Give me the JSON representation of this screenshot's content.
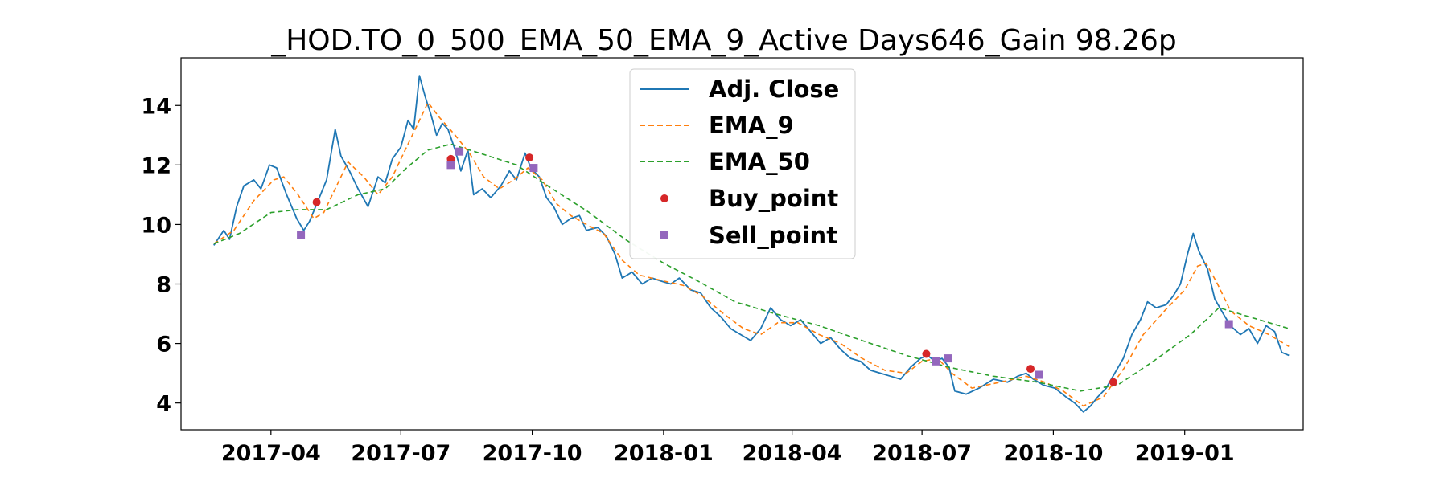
{
  "chart_data": {
    "type": "line",
    "title": "_HOD.TO_0_500_EMA_50_EMA_9_Active Days646_Gain  98.26p",
    "xlabel": "",
    "ylabel": "",
    "xlim": [
      "2017-01-28",
      "2019-03-25"
    ],
    "ylim": [
      3.1,
      15.6
    ],
    "grid": false,
    "legend_position": "top-center",
    "x_tick_labels": [
      "2017-04",
      "2017-07",
      "2017-10",
      "2018-01",
      "2018-04",
      "2018-07",
      "2018-10",
      "2019-01"
    ],
    "y_tick_labels": [
      "4",
      "6",
      "8",
      "10",
      "12",
      "14"
    ],
    "series": [
      {
        "name": "Adj. Close",
        "color": "#1f77b4",
        "style": "solid",
        "points": [
          [
            "2017-02-20",
            9.3
          ],
          [
            "2017-02-27",
            9.8
          ],
          [
            "2017-03-03",
            9.5
          ],
          [
            "2017-03-08",
            10.6
          ],
          [
            "2017-03-13",
            11.3
          ],
          [
            "2017-03-20",
            11.5
          ],
          [
            "2017-03-25",
            11.2
          ],
          [
            "2017-03-31",
            12.0
          ],
          [
            "2017-04-05",
            11.9
          ],
          [
            "2017-04-12",
            11.0
          ],
          [
            "2017-04-19",
            10.2
          ],
          [
            "2017-04-24",
            9.8
          ],
          [
            "2017-04-28",
            10.1
          ],
          [
            "2017-05-04",
            10.8
          ],
          [
            "2017-05-10",
            11.5
          ],
          [
            "2017-05-16",
            13.2
          ],
          [
            "2017-05-20",
            12.3
          ],
          [
            "2017-05-26",
            11.8
          ],
          [
            "2017-06-01",
            11.2
          ],
          [
            "2017-06-08",
            10.6
          ],
          [
            "2017-06-15",
            11.6
          ],
          [
            "2017-06-20",
            11.4
          ],
          [
            "2017-06-25",
            12.2
          ],
          [
            "2017-07-01",
            12.6
          ],
          [
            "2017-07-06",
            13.5
          ],
          [
            "2017-07-10",
            13.2
          ],
          [
            "2017-07-14",
            15.0
          ],
          [
            "2017-07-18",
            14.3
          ],
          [
            "2017-07-22",
            13.7
          ],
          [
            "2017-07-26",
            13.0
          ],
          [
            "2017-07-30",
            13.4
          ],
          [
            "2017-08-03",
            13.2
          ],
          [
            "2017-08-08",
            12.5
          ],
          [
            "2017-08-12",
            11.8
          ],
          [
            "2017-08-17",
            12.5
          ],
          [
            "2017-08-21",
            11.0
          ],
          [
            "2017-08-27",
            11.2
          ],
          [
            "2017-09-02",
            10.9
          ],
          [
            "2017-09-09",
            11.3
          ],
          [
            "2017-09-15",
            11.8
          ],
          [
            "2017-09-20",
            11.5
          ],
          [
            "2017-09-26",
            12.4
          ],
          [
            "2017-09-30",
            11.9
          ],
          [
            "2017-10-06",
            11.6
          ],
          [
            "2017-10-11",
            10.9
          ],
          [
            "2017-10-16",
            10.6
          ],
          [
            "2017-10-22",
            10.0
          ],
          [
            "2017-10-28",
            10.2
          ],
          [
            "2017-11-03",
            10.3
          ],
          [
            "2017-11-08",
            9.8
          ],
          [
            "2017-11-16",
            9.9
          ],
          [
            "2017-11-22",
            9.6
          ],
          [
            "2017-11-28",
            9.0
          ],
          [
            "2017-12-03",
            8.2
          ],
          [
            "2017-12-10",
            8.4
          ],
          [
            "2017-12-17",
            8.0
          ],
          [
            "2017-12-24",
            8.2
          ],
          [
            "2017-12-30",
            8.1
          ],
          [
            "2018-01-06",
            8.0
          ],
          [
            "2018-01-12",
            8.2
          ],
          [
            "2018-01-20",
            7.8
          ],
          [
            "2018-01-27",
            7.7
          ],
          [
            "2018-02-03",
            7.2
          ],
          [
            "2018-02-10",
            6.9
          ],
          [
            "2018-02-17",
            6.5
          ],
          [
            "2018-02-24",
            6.3
          ],
          [
            "2018-03-03",
            6.1
          ],
          [
            "2018-03-10",
            6.5
          ],
          [
            "2018-03-17",
            7.2
          ],
          [
            "2018-03-24",
            6.8
          ],
          [
            "2018-03-31",
            6.6
          ],
          [
            "2018-04-07",
            6.8
          ],
          [
            "2018-04-14",
            6.4
          ],
          [
            "2018-04-21",
            6.0
          ],
          [
            "2018-04-28",
            6.2
          ],
          [
            "2018-05-05",
            5.8
          ],
          [
            "2018-05-12",
            5.5
          ],
          [
            "2018-05-19",
            5.4
          ],
          [
            "2018-05-26",
            5.1
          ],
          [
            "2018-06-02",
            5.0
          ],
          [
            "2018-06-09",
            4.9
          ],
          [
            "2018-06-16",
            4.8
          ],
          [
            "2018-06-23",
            5.2
          ],
          [
            "2018-06-30",
            5.5
          ],
          [
            "2018-07-05",
            5.6
          ],
          [
            "2018-07-10",
            5.4
          ],
          [
            "2018-07-15",
            5.5
          ],
          [
            "2018-07-20",
            5.2
          ],
          [
            "2018-07-24",
            4.4
          ],
          [
            "2018-08-01",
            4.3
          ],
          [
            "2018-08-10",
            4.5
          ],
          [
            "2018-08-20",
            4.8
          ],
          [
            "2018-08-30",
            4.7
          ],
          [
            "2018-09-06",
            4.9
          ],
          [
            "2018-09-12",
            5.0
          ],
          [
            "2018-09-17",
            4.8
          ],
          [
            "2018-09-24",
            4.6
          ],
          [
            "2018-10-02",
            4.5
          ],
          [
            "2018-10-10",
            4.2
          ],
          [
            "2018-10-16",
            4.0
          ],
          [
            "2018-10-22",
            3.7
          ],
          [
            "2018-10-27",
            3.9
          ],
          [
            "2018-11-01",
            4.2
          ],
          [
            "2018-11-07",
            4.5
          ],
          [
            "2018-11-13",
            5.0
          ],
          [
            "2018-11-19",
            5.5
          ],
          [
            "2018-11-25",
            6.3
          ],
          [
            "2018-12-01",
            6.8
          ],
          [
            "2018-12-06",
            7.4
          ],
          [
            "2018-12-12",
            7.2
          ],
          [
            "2018-12-19",
            7.3
          ],
          [
            "2018-12-24",
            7.6
          ],
          [
            "2018-12-29",
            8.0
          ],
          [
            "2019-01-03",
            9.0
          ],
          [
            "2019-01-07",
            9.7
          ],
          [
            "2019-01-11",
            9.1
          ],
          [
            "2019-01-17",
            8.5
          ],
          [
            "2019-01-22",
            7.5
          ],
          [
            "2019-01-28",
            7.0
          ],
          [
            "2019-02-02",
            6.6
          ],
          [
            "2019-02-09",
            6.3
          ],
          [
            "2019-02-15",
            6.5
          ],
          [
            "2019-02-21",
            6.0
          ],
          [
            "2019-02-27",
            6.6
          ],
          [
            "2019-03-05",
            6.4
          ],
          [
            "2019-03-10",
            5.7
          ],
          [
            "2019-03-15",
            5.6
          ]
        ]
      },
      {
        "name": "EMA_9",
        "color": "#ff7f0e",
        "style": "dashed",
        "points": [
          [
            "2017-02-20",
            9.35
          ],
          [
            "2017-03-06",
            9.8
          ],
          [
            "2017-03-20",
            10.8
          ],
          [
            "2017-04-03",
            11.5
          ],
          [
            "2017-04-10",
            11.6
          ],
          [
            "2017-04-20",
            11.0
          ],
          [
            "2017-05-01",
            10.2
          ],
          [
            "2017-05-08",
            10.4
          ],
          [
            "2017-05-16",
            11.2
          ],
          [
            "2017-05-25",
            12.1
          ],
          [
            "2017-06-05",
            11.6
          ],
          [
            "2017-06-15",
            11.0
          ],
          [
            "2017-06-25",
            11.6
          ],
          [
            "2017-07-05",
            12.6
          ],
          [
            "2017-07-15",
            13.6
          ],
          [
            "2017-07-20",
            14.1
          ],
          [
            "2017-07-28",
            13.6
          ],
          [
            "2017-08-08",
            13.0
          ],
          [
            "2017-08-18",
            12.4
          ],
          [
            "2017-08-28",
            11.6
          ],
          [
            "2017-09-08",
            11.2
          ],
          [
            "2017-09-18",
            11.5
          ],
          [
            "2017-09-28",
            11.9
          ],
          [
            "2017-10-08",
            11.5
          ],
          [
            "2017-10-18",
            10.7
          ],
          [
            "2017-10-28",
            10.3
          ],
          [
            "2017-11-08",
            10.0
          ],
          [
            "2017-11-20",
            9.7
          ],
          [
            "2017-12-03",
            8.8
          ],
          [
            "2017-12-15",
            8.3
          ],
          [
            "2018-01-01",
            8.1
          ],
          [
            "2018-01-15",
            7.95
          ],
          [
            "2018-01-28",
            7.6
          ],
          [
            "2018-02-12",
            7.0
          ],
          [
            "2018-02-26",
            6.5
          ],
          [
            "2018-03-10",
            6.3
          ],
          [
            "2018-03-22",
            6.7
          ],
          [
            "2018-04-05",
            6.7
          ],
          [
            "2018-04-20",
            6.3
          ],
          [
            "2018-05-05",
            6.0
          ],
          [
            "2018-05-20",
            5.5
          ],
          [
            "2018-06-05",
            5.1
          ],
          [
            "2018-06-20",
            5.0
          ],
          [
            "2018-07-01",
            5.4
          ],
          [
            "2018-07-12",
            5.5
          ],
          [
            "2018-07-22",
            5.0
          ],
          [
            "2018-08-05",
            4.5
          ],
          [
            "2018-08-25",
            4.7
          ],
          [
            "2018-09-12",
            4.9
          ],
          [
            "2018-09-25",
            4.7
          ],
          [
            "2018-10-08",
            4.4
          ],
          [
            "2018-10-22",
            3.9
          ],
          [
            "2018-11-05",
            4.2
          ],
          [
            "2018-11-20",
            5.2
          ],
          [
            "2018-12-03",
            6.3
          ],
          [
            "2018-12-18",
            7.1
          ],
          [
            "2019-01-01",
            7.8
          ],
          [
            "2019-01-10",
            8.6
          ],
          [
            "2019-01-16",
            8.7
          ],
          [
            "2019-01-24",
            8.0
          ],
          [
            "2019-02-02",
            7.1
          ],
          [
            "2019-02-15",
            6.6
          ],
          [
            "2019-03-01",
            6.3
          ],
          [
            "2019-03-15",
            5.9
          ]
        ]
      },
      {
        "name": "EMA_50",
        "color": "#2ca02c",
        "style": "dashed",
        "points": [
          [
            "2017-02-20",
            9.35
          ],
          [
            "2017-03-10",
            9.7
          ],
          [
            "2017-04-01",
            10.4
          ],
          [
            "2017-04-20",
            10.5
          ],
          [
            "2017-05-10",
            10.5
          ],
          [
            "2017-06-01",
            11.0
          ],
          [
            "2017-06-20",
            11.2
          ],
          [
            "2017-07-05",
            11.9
          ],
          [
            "2017-07-20",
            12.5
          ],
          [
            "2017-08-05",
            12.7
          ],
          [
            "2017-08-25",
            12.4
          ],
          [
            "2017-09-20",
            12.0
          ],
          [
            "2017-10-15",
            11.2
          ],
          [
            "2017-11-10",
            10.4
          ],
          [
            "2017-12-05",
            9.5
          ],
          [
            "2018-01-01",
            8.7
          ],
          [
            "2018-01-25",
            8.1
          ],
          [
            "2018-02-20",
            7.4
          ],
          [
            "2018-03-20",
            7.0
          ],
          [
            "2018-04-20",
            6.6
          ],
          [
            "2018-05-20",
            6.1
          ],
          [
            "2018-06-20",
            5.6
          ],
          [
            "2018-07-20",
            5.2
          ],
          [
            "2018-08-20",
            4.9
          ],
          [
            "2018-09-20",
            4.7
          ],
          [
            "2018-10-20",
            4.4
          ],
          [
            "2018-11-15",
            4.6
          ],
          [
            "2018-12-10",
            5.4
          ],
          [
            "2019-01-05",
            6.3
          ],
          [
            "2019-01-25",
            7.2
          ],
          [
            "2019-02-15",
            6.9
          ],
          [
            "2019-03-15",
            6.5
          ]
        ]
      }
    ],
    "markers": [
      {
        "name": "Buy_point",
        "color": "#d62728",
        "shape": "circle",
        "points": [
          [
            "2017-05-03",
            10.75
          ],
          [
            "2017-08-05",
            12.2
          ],
          [
            "2017-09-29",
            12.25
          ],
          [
            "2018-07-04",
            5.65
          ],
          [
            "2018-09-15",
            5.15
          ],
          [
            "2018-11-12",
            4.7
          ]
        ]
      },
      {
        "name": "Sell_point",
        "color": "#9467bd",
        "shape": "square",
        "points": [
          [
            "2017-04-22",
            9.65
          ],
          [
            "2017-08-05",
            12.0
          ],
          [
            "2017-08-11",
            12.45
          ],
          [
            "2017-10-02",
            11.9
          ],
          [
            "2018-07-11",
            5.4
          ],
          [
            "2018-07-19",
            5.5
          ],
          [
            "2018-09-21",
            4.95
          ],
          [
            "2019-02-01",
            6.65
          ]
        ]
      }
    ]
  }
}
